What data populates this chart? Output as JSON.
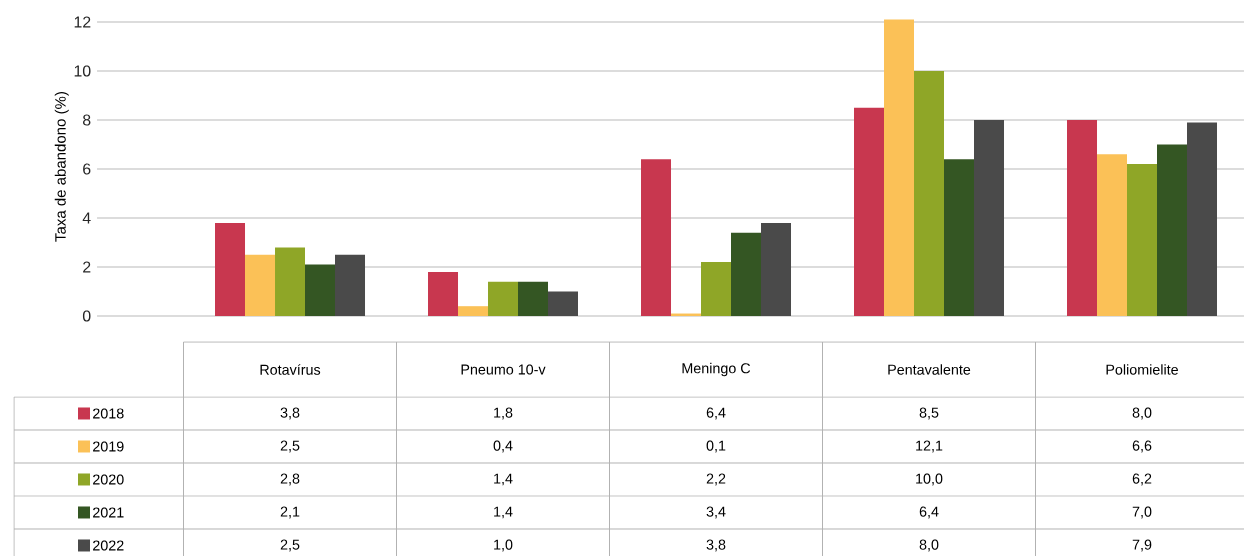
{
  "chart_data": {
    "type": "bar",
    "ylabel": "Taxa de abandono (%)",
    "categories": [
      "Rotavírus",
      "Pneumo 10-v",
      "Meningo C",
      "Pentavalente",
      "Poliomielite"
    ],
    "series": [
      {
        "name": "2018",
        "color": "#c8374f",
        "values": [
          3.8,
          1.8,
          6.4,
          8.5,
          8.0
        ],
        "value_labels": [
          "3,8",
          "1,8",
          "6,4",
          "8,5",
          "8,0"
        ]
      },
      {
        "name": "2019",
        "color": "#fbc157",
        "values": [
          2.5,
          0.4,
          0.1,
          12.1,
          6.6
        ],
        "value_labels": [
          "2,5",
          "0,4",
          "0,1",
          "12,1",
          "6,6"
        ]
      },
      {
        "name": "2020",
        "color": "#8fa627",
        "values": [
          2.8,
          1.4,
          2.2,
          10.0,
          6.2
        ],
        "value_labels": [
          "2,8",
          "1,4",
          "2,2",
          "10,0",
          "6,2"
        ]
      },
      {
        "name": "2021",
        "color": "#345623",
        "values": [
          2.1,
          1.4,
          3.4,
          6.4,
          7.0
        ],
        "value_labels": [
          "2,1",
          "1,4",
          "3,4",
          "6,4",
          "7,0"
        ]
      },
      {
        "name": "2022",
        "color": "#4a4a4a",
        "values": [
          2.5,
          1.0,
          3.8,
          8.0,
          7.9
        ],
        "value_labels": [
          "2,5",
          "1,0",
          "3,8",
          "8,0",
          "7,9"
        ]
      }
    ],
    "ylim": [
      0,
      12.2
    ],
    "yticks": [
      0,
      2,
      4,
      6,
      8,
      10,
      12
    ],
    "grid": "y",
    "legend": "bottom"
  }
}
